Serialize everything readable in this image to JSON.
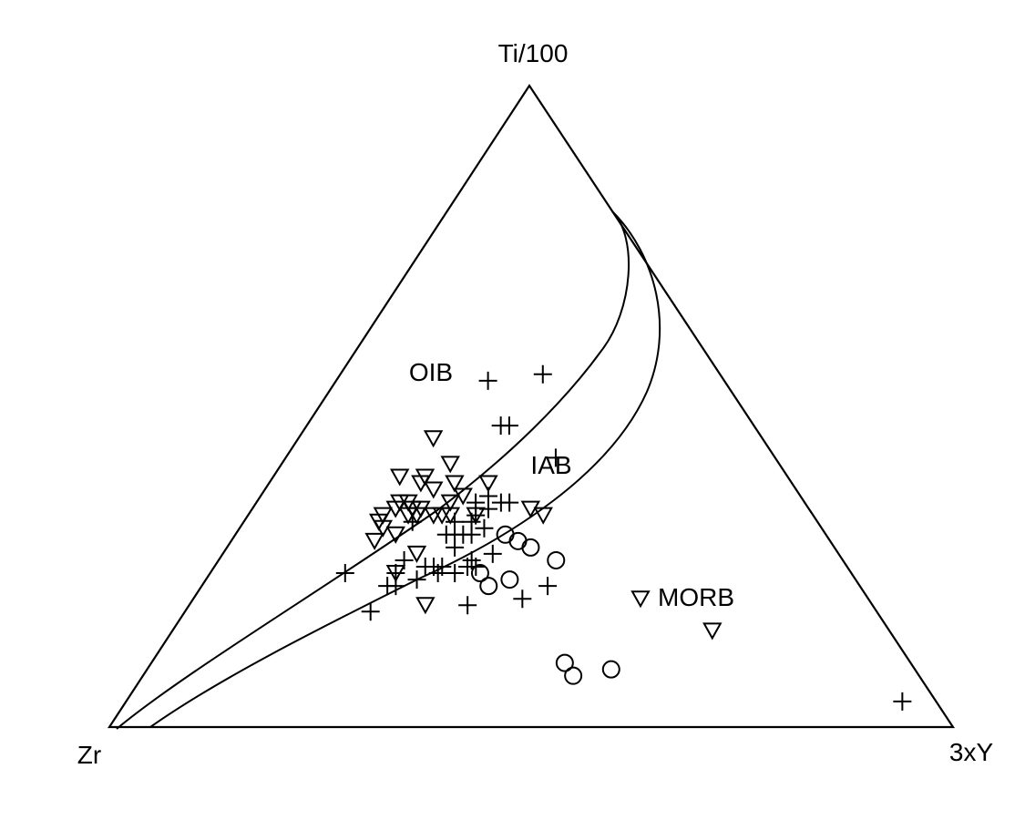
{
  "chart_data": {
    "type": "scatter",
    "subtype": "ternary",
    "apices": {
      "top": "Ti/100",
      "left": "Zr",
      "right": "3xY"
    },
    "fields": [
      "OIB",
      "IAB",
      "MORB"
    ],
    "grid": false,
    "markers": {
      "plus": "+",
      "triangle": "inverted-triangle",
      "circle": "open-circle"
    },
    "points": {
      "triangle": [
        {
          "zr": 0.39,
          "ti": 0.45,
          "y": 0.16
        },
        {
          "zr": 0.39,
          "ti": 0.41,
          "y": 0.2
        },
        {
          "zr": 0.43,
          "ti": 0.39,
          "y": 0.18
        },
        {
          "zr": 0.44,
          "ti": 0.38,
          "y": 0.18
        },
        {
          "zr": 0.46,
          "ti": 0.39,
          "y": 0.15
        },
        {
          "zr": 0.43,
          "ti": 0.37,
          "y": 0.2
        },
        {
          "zr": 0.4,
          "ti": 0.38,
          "y": 0.22
        },
        {
          "zr": 0.4,
          "ti": 0.36,
          "y": 0.24
        },
        {
          "zr": 0.47,
          "ti": 0.35,
          "y": 0.18
        },
        {
          "zr": 0.46,
          "ti": 0.34,
          "y": 0.2
        },
        {
          "zr": 0.45,
          "ti": 0.33,
          "y": 0.22
        },
        {
          "zr": 0.48,
          "ti": 0.35,
          "y": 0.17
        },
        {
          "zr": 0.49,
          "ti": 0.34,
          "y": 0.17
        },
        {
          "zr": 0.47,
          "ti": 0.34,
          "y": 0.19
        },
        {
          "zr": 0.48,
          "ti": 0.33,
          "y": 0.19
        },
        {
          "zr": 0.47,
          "ti": 0.33,
          "y": 0.2
        },
        {
          "zr": 0.44,
          "ti": 0.33,
          "y": 0.23
        },
        {
          "zr": 0.43,
          "ti": 0.33,
          "y": 0.24
        },
        {
          "zr": 0.4,
          "ti": 0.33,
          "y": 0.27
        },
        {
          "zr": 0.42,
          "ti": 0.35,
          "y": 0.23
        },
        {
          "zr": 0.36,
          "ti": 0.38,
          "y": 0.26
        },
        {
          "zr": 0.33,
          "ti": 0.34,
          "y": 0.33
        },
        {
          "zr": 0.32,
          "ti": 0.33,
          "y": 0.35
        },
        {
          "zr": 0.51,
          "ti": 0.33,
          "y": 0.16
        },
        {
          "zr": 0.52,
          "ti": 0.32,
          "y": 0.16
        },
        {
          "zr": 0.52,
          "ti": 0.31,
          "y": 0.17
        },
        {
          "zr": 0.51,
          "ti": 0.3,
          "y": 0.19
        },
        {
          "zr": 0.54,
          "ti": 0.29,
          "y": 0.17
        },
        {
          "zr": 0.5,
          "ti": 0.27,
          "y": 0.23
        },
        {
          "zr": 0.54,
          "ti": 0.24,
          "y": 0.22
        },
        {
          "zr": 0.53,
          "ti": 0.19,
          "y": 0.28
        },
        {
          "zr": 0.27,
          "ti": 0.2,
          "y": 0.53
        },
        {
          "zr": 0.21,
          "ti": 0.15,
          "y": 0.64
        }
      ],
      "plus": [
        {
          "zr": 0.28,
          "ti": 0.54,
          "y": 0.18
        },
        {
          "zr": 0.21,
          "ti": 0.55,
          "y": 0.24
        },
        {
          "zr": 0.3,
          "ti": 0.47,
          "y": 0.23
        },
        {
          "zr": 0.29,
          "ti": 0.47,
          "y": 0.24
        },
        {
          "zr": 0.26,
          "ti": 0.42,
          "y": 0.32
        },
        {
          "zr": 0.39,
          "ti": 0.35,
          "y": 0.26
        },
        {
          "zr": 0.37,
          "ti": 0.36,
          "y": 0.27
        },
        {
          "zr": 0.36,
          "ti": 0.35,
          "y": 0.29
        },
        {
          "zr": 0.38,
          "ti": 0.34,
          "y": 0.28
        },
        {
          "zr": 0.35,
          "ti": 0.35,
          "y": 0.3
        },
        {
          "zr": 0.48,
          "ti": 0.32,
          "y": 0.2
        },
        {
          "zr": 0.44,
          "ti": 0.3,
          "y": 0.26
        },
        {
          "zr": 0.45,
          "ti": 0.3,
          "y": 0.25
        },
        {
          "zr": 0.43,
          "ti": 0.3,
          "y": 0.27
        },
        {
          "zr": 0.42,
          "ti": 0.3,
          "y": 0.28
        },
        {
          "zr": 0.43,
          "ti": 0.32,
          "y": 0.25
        },
        {
          "zr": 0.4,
          "ti": 0.33,
          "y": 0.27
        },
        {
          "zr": 0.41,
          "ti": 0.32,
          "y": 0.27
        },
        {
          "zr": 0.4,
          "ti": 0.31,
          "y": 0.29
        },
        {
          "zr": 0.45,
          "ti": 0.28,
          "y": 0.27
        },
        {
          "zr": 0.44,
          "ti": 0.26,
          "y": 0.3
        },
        {
          "zr": 0.45,
          "ti": 0.25,
          "y": 0.3
        },
        {
          "zr": 0.44,
          "ti": 0.25,
          "y": 0.31
        },
        {
          "zr": 0.47,
          "ti": 0.24,
          "y": 0.29
        },
        {
          "zr": 0.49,
          "ti": 0.24,
          "y": 0.27
        },
        {
          "zr": 0.48,
          "ti": 0.25,
          "y": 0.27
        },
        {
          "zr": 0.49,
          "ti": 0.25,
          "y": 0.26
        },
        {
          "zr": 0.5,
          "ti": 0.25,
          "y": 0.25
        },
        {
          "zr": 0.52,
          "ti": 0.23,
          "y": 0.25
        },
        {
          "zr": 0.54,
          "ti": 0.24,
          "y": 0.22
        },
        {
          "zr": 0.55,
          "ti": 0.22,
          "y": 0.23
        },
        {
          "zr": 0.56,
          "ti": 0.22,
          "y": 0.22
        },
        {
          "zr": 0.6,
          "ti": 0.24,
          "y": 0.16
        },
        {
          "zr": 0.52,
          "ti": 0.26,
          "y": 0.22
        },
        {
          "zr": 0.41,
          "ti": 0.27,
          "y": 0.32
        },
        {
          "zr": 0.37,
          "ti": 0.22,
          "y": 0.41
        },
        {
          "zr": 0.48,
          "ti": 0.19,
          "y": 0.33
        },
        {
          "zr": 0.6,
          "ti": 0.18,
          "y": 0.22
        },
        {
          "zr": 0.41,
          "ti": 0.2,
          "y": 0.39
        },
        {
          "zr": 0.04,
          "ti": 0.04,
          "y": 0.92
        }
      ],
      "circle": [
        {
          "zr": 0.38,
          "ti": 0.3,
          "y": 0.32
        },
        {
          "zr": 0.37,
          "ti": 0.29,
          "y": 0.34
        },
        {
          "zr": 0.36,
          "ti": 0.28,
          "y": 0.36
        },
        {
          "zr": 0.34,
          "ti": 0.26,
          "y": 0.4
        },
        {
          "zr": 0.44,
          "ti": 0.24,
          "y": 0.32
        },
        {
          "zr": 0.41,
          "ti": 0.23,
          "y": 0.36
        },
        {
          "zr": 0.44,
          "ti": 0.22,
          "y": 0.34
        },
        {
          "zr": 0.41,
          "ti": 0.1,
          "y": 0.49
        },
        {
          "zr": 0.41,
          "ti": 0.08,
          "y": 0.51
        },
        {
          "zr": 0.36,
          "ti": 0.09,
          "y": 0.55
        }
      ]
    }
  }
}
